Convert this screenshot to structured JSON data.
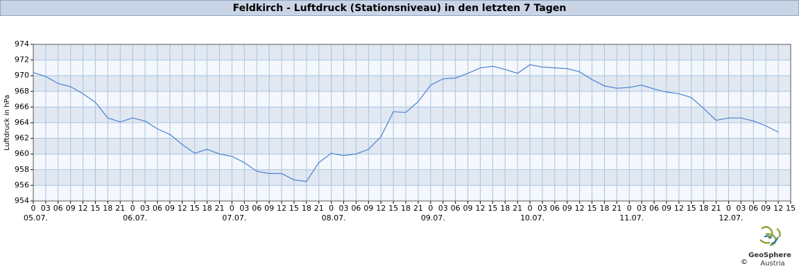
{
  "chart_data": {
    "type": "line",
    "title": "Feldkirch - Luftdruck (Stationsniveau) in den letzten 7 Tagen",
    "ylabel": "Luftdruck in hPa",
    "x": [
      0,
      3,
      6,
      9,
      12,
      15,
      18,
      21,
      24,
      27,
      30,
      33,
      36,
      39,
      42,
      45,
      48,
      51,
      54,
      57,
      60,
      63,
      66,
      69,
      72,
      75,
      78,
      81,
      84,
      87,
      90,
      93,
      96,
      99,
      102,
      105,
      108,
      111,
      114,
      117,
      120,
      123,
      126,
      129,
      132,
      135,
      138,
      141,
      144,
      147,
      150,
      153,
      156,
      159,
      162,
      165,
      168,
      171,
      174,
      177,
      180
    ],
    "series": [
      {
        "name": "Luftdruck",
        "color": "#4a7fd4",
        "values": [
          970.4,
          969.9,
          969.0,
          968.6,
          967.7,
          966.6,
          964.6,
          964.1,
          964.6,
          964.2,
          963.2,
          962.5,
          961.2,
          960.1,
          960.6,
          960.0,
          959.7,
          958.9,
          957.8,
          957.5,
          957.5,
          956.7,
          956.5,
          958.9,
          960.1,
          959.8,
          960.0,
          960.6,
          962.2,
          965.4,
          965.3,
          966.7,
          968.8,
          969.6,
          969.7,
          970.3,
          971.0,
          971.2,
          970.8,
          970.3,
          971.4,
          971.1,
          971.0,
          970.9,
          970.5,
          969.5,
          968.7,
          968.4,
          968.5,
          968.8,
          968.3,
          967.9,
          967.7,
          967.2,
          965.8,
          964.3,
          964.6,
          964.6,
          964.2,
          963.6,
          962.8
        ]
      }
    ],
    "xlim": [
      0,
      183
    ],
    "ylim": [
      954,
      974
    ],
    "yticks": [
      954,
      956,
      958,
      960,
      962,
      964,
      966,
      968,
      970,
      972,
      974
    ],
    "xticks": [
      0,
      {
        "value": 3,
        "label": "03"
      },
      {
        "value": 6,
        "label": "06"
      },
      {
        "value": 9,
        "label": "09"
      },
      {
        "value": 12,
        "label": "12"
      },
      {
        "value": 15,
        "label": "15"
      },
      {
        "value": 18,
        "label": "18"
      },
      {
        "value": 21,
        "label": "21"
      },
      {
        "value": 24,
        "label": "0"
      },
      {
        "value": 27,
        "label": "03"
      },
      {
        "value": 30,
        "label": "06"
      },
      {
        "value": 33,
        "label": "09"
      },
      {
        "value": 36,
        "label": "12"
      },
      {
        "value": 39,
        "label": "15"
      },
      {
        "value": 42,
        "label": "18"
      },
      {
        "value": 45,
        "label": "21"
      },
      {
        "value": 48,
        "label": "0"
      },
      {
        "value": 51,
        "label": "03"
      },
      {
        "value": 54,
        "label": "06"
      },
      {
        "value": 57,
        "label": "09"
      },
      {
        "value": 60,
        "label": "12"
      },
      {
        "value": 63,
        "label": "15"
      },
      {
        "value": 66,
        "label": "18"
      },
      {
        "value": 69,
        "label": "21"
      },
      {
        "value": 72,
        "label": "0"
      },
      {
        "value": 75,
        "label": "03"
      },
      {
        "value": 78,
        "label": "06"
      },
      {
        "value": 81,
        "label": "09"
      },
      {
        "value": 84,
        "label": "12"
      },
      {
        "value": 87,
        "label": "15"
      },
      {
        "value": 90,
        "label": "18"
      },
      {
        "value": 93,
        "label": "21"
      },
      {
        "value": 96,
        "label": "0"
      },
      {
        "value": 99,
        "label": "03"
      },
      {
        "value": 102,
        "label": "06"
      },
      {
        "value": 105,
        "label": "09"
      },
      {
        "value": 108,
        "label": "12"
      },
      {
        "value": 111,
        "label": "15"
      },
      {
        "value": 114,
        "label": "18"
      },
      {
        "value": 117,
        "label": "21"
      },
      {
        "value": 120,
        "label": "0"
      },
      {
        "value": 123,
        "label": "03"
      },
      {
        "value": 126,
        "label": "06"
      },
      {
        "value": 129,
        "label": "09"
      },
      {
        "value": 132,
        "label": "12"
      },
      {
        "value": 135,
        "label": "15"
      },
      {
        "value": 138,
        "label": "18"
      },
      {
        "value": 141,
        "label": "21"
      },
      {
        "value": 144,
        "label": "0"
      },
      {
        "value": 147,
        "label": "03"
      },
      {
        "value": 150,
        "label": "06"
      },
      {
        "value": 153,
        "label": "09"
      },
      {
        "value": 156,
        "label": "12"
      },
      {
        "value": 159,
        "label": "15"
      },
      {
        "value": 162,
        "label": "18"
      },
      {
        "value": 165,
        "label": "21"
      },
      {
        "value": 168,
        "label": "0"
      },
      {
        "value": 171,
        "label": "03"
      },
      {
        "value": 174,
        "label": "06"
      },
      {
        "value": 177,
        "label": "09"
      },
      {
        "value": 180,
        "label": "12"
      },
      {
        "value": 183,
        "label": "15"
      }
    ],
    "xdates": [
      {
        "value": 0,
        "label": "05.07."
      },
      {
        "value": 24,
        "label": "06.07."
      },
      {
        "value": 48,
        "label": "07.07."
      },
      {
        "value": 72,
        "label": "08.07."
      },
      {
        "value": 96,
        "label": "09.07."
      },
      {
        "value": 120,
        "label": "10.07."
      },
      {
        "value": 144,
        "label": "11.07."
      },
      {
        "value": 168,
        "label": "12.07."
      }
    ],
    "grid": true
  },
  "logo": {
    "name": "GeoSphere",
    "sub": "Austria",
    "copyright": "©"
  }
}
